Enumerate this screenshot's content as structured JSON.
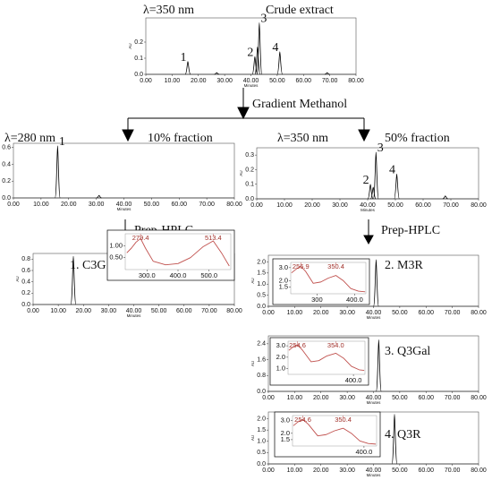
{
  "flow": {
    "gradient": "Gradient Methanol",
    "prep_left": "Prep-HPLC",
    "prep_right": "Prep-HPLC"
  },
  "panels": [
    {
      "title_left": "λ=350 nm",
      "title_right": "Crude extract",
      "x_label": "Minutes",
      "y_label": "AU",
      "xlim": [
        0,
        80
      ],
      "xticks": [
        {
          "value": 0,
          "label": "0.00"
        },
        {
          "value": 10,
          "label": "10.00"
        },
        {
          "value": 20,
          "label": "20.00"
        },
        {
          "value": 30,
          "label": "30.00"
        },
        {
          "value": 40,
          "label": "40.00"
        },
        {
          "value": 50,
          "label": "50.00"
        },
        {
          "value": 60,
          "label": "60.00"
        },
        {
          "value": 70,
          "label": "70.00"
        },
        {
          "value": 80,
          "label": "80.00"
        }
      ],
      "ylim": [
        0,
        0.35
      ],
      "yticks": [
        {
          "value": 0,
          "label": "0.0"
        },
        {
          "value": 0.1,
          "label": "0.1"
        },
        0.2
      ],
      "peaks": [
        {
          "time": 16,
          "height": 0.08,
          "label": "1"
        },
        {
          "time": 27,
          "height": 0.01
        },
        {
          "time": 41.5,
          "height": 0.11,
          "label": "2"
        },
        {
          "time": 42.5,
          "height": 0.17
        },
        {
          "time": 43.2,
          "height": 0.32,
          "label": "3"
        },
        {
          "time": 51,
          "height": 0.14,
          "label": "4"
        },
        {
          "time": 69,
          "height": 0.01
        }
      ]
    },
    {
      "title_left": "λ=280 nm",
      "title_right": "10% fraction",
      "x_label": "Minutes",
      "y_label": "AU",
      "xlim": [
        0,
        80
      ],
      "xticks": [
        {
          "value": 0,
          "label": "0.00"
        },
        {
          "value": 10,
          "label": "10.00"
        },
        {
          "value": 20,
          "label": "20.00"
        },
        {
          "value": 30,
          "label": "30.00"
        },
        {
          "value": 40,
          "label": "40.00"
        },
        {
          "value": 50,
          "label": "50.00"
        },
        {
          "value": 60,
          "label": "60.00"
        },
        {
          "value": 70,
          "label": "70.00"
        },
        {
          "value": 80,
          "label": "80.00"
        }
      ],
      "ylim": [
        0,
        0.65
      ],
      "yticks": [
        {
          "value": 0,
          "label": "0.0"
        },
        0.2,
        0.4,
        0.6
      ],
      "peaks": [
        {
          "time": 16,
          "height": 0.62,
          "label": "1"
        },
        {
          "time": 31,
          "height": 0.03
        }
      ]
    },
    {
      "title_left": "λ=350 nm",
      "title_right": "50% fraction",
      "x_label": "Minutes",
      "y_label": "AU",
      "xlim": [
        0,
        80
      ],
      "xticks": [
        {
          "value": 0,
          "label": "0.00"
        },
        {
          "value": 10,
          "label": "10.00"
        },
        {
          "value": 20,
          "label": "20.00"
        },
        {
          "value": 30,
          "label": "30.00"
        },
        {
          "value": 40,
          "label": "40.00"
        },
        {
          "value": 50,
          "label": "50.00"
        },
        {
          "value": 60,
          "label": "60.00"
        },
        {
          "value": 70,
          "label": "70.00"
        },
        {
          "value": 80,
          "label": "80.00"
        }
      ],
      "ylim": [
        0,
        0.35
      ],
      "yticks": [
        {
          "value": 0,
          "label": "0.0"
        },
        {
          "value": 0.1,
          "label": "0.1"
        },
        0.2,
        0.3
      ],
      "peaks": [
        {
          "time": 41,
          "height": 0.1,
          "label": "2"
        },
        {
          "time": 42,
          "height": 0.08
        },
        {
          "time": 43,
          "height": 0.32,
          "label": "3"
        },
        {
          "time": 50.5,
          "height": 0.17,
          "label": "4"
        },
        {
          "time": 68,
          "height": 0.02
        }
      ]
    },
    {
      "compound": "1. C3G",
      "x_label": "Minutes",
      "y_label": "AU",
      "xlim": [
        0,
        80
      ],
      "xticks": [
        {
          "value": 0,
          "label": "0.00"
        },
        {
          "value": 10,
          "label": "10.00"
        },
        {
          "value": 20,
          "label": "20.00"
        },
        {
          "value": 30,
          "label": "30.00"
        },
        {
          "value": 40,
          "label": "40.00"
        },
        {
          "value": 50,
          "label": "50.00"
        },
        {
          "value": 60,
          "label": "60.00"
        },
        {
          "value": 70,
          "label": "70.00"
        },
        {
          "value": 80,
          "label": "80.00"
        }
      ],
      "ylim": [
        0,
        0.9
      ],
      "yticks": [
        {
          "value": 0,
          "label": "0.0"
        },
        0.2,
        0.4,
        0.6,
        0.8
      ],
      "peaks": [
        {
          "time": 16,
          "height": 0.85
        }
      ],
      "inset": {
        "xlim": [
          230,
          570
        ],
        "xticks": [
          {
            "value": 300,
            "label": "300.0"
          },
          {
            "value": 400,
            "label": "400.0"
          },
          {
            "value": 500,
            "label": "500.0"
          }
        ],
        "ylim": [
          0,
          1.5
        ],
        "yticks": [
          {
            "value": 0.5,
            "label": "0.50"
          },
          {
            "value": 1,
            "label": "1.00"
          }
        ],
        "x": [
          235,
          250,
          265,
          279.4,
          295,
          320,
          360,
          400,
          440,
          480,
          513.4,
          540,
          565
        ],
        "values": [
          0.7,
          0.9,
          1.15,
          1.3,
          0.9,
          0.35,
          0.2,
          0.25,
          0.5,
          0.95,
          1.2,
          0.7,
          0.15
        ],
        "peak_labels": [
          {
            "x": 279.4,
            "label": "279.4"
          },
          {
            "x": 513.4,
            "label": "513.4"
          }
        ]
      }
    },
    {
      "compound": "2. M3R",
      "x_label": "Minutes",
      "y_label": "AU",
      "xlim": [
        0,
        80
      ],
      "xticks": [
        {
          "value": 0,
          "label": "0.00"
        },
        {
          "value": 10,
          "label": "10.00"
        },
        {
          "value": 20,
          "label": "20.00"
        },
        {
          "value": 30,
          "label": "30.00"
        },
        {
          "value": 40,
          "label": "40.00"
        },
        {
          "value": 50,
          "label": "50.00"
        },
        {
          "value": 60,
          "label": "60.00"
        },
        {
          "value": 70,
          "label": "70.00"
        },
        {
          "value": 80,
          "label": "80.00"
        }
      ],
      "ylim": [
        0,
        2.3
      ],
      "yticks": [
        {
          "value": 0,
          "label": "0.0"
        },
        {
          "value": 0.5,
          "label": "0.5"
        },
        {
          "value": 1,
          "label": "1.0"
        },
        1.5,
        {
          "value": 2,
          "label": "2.0"
        }
      ],
      "peaks": [
        {
          "time": 41,
          "height": 2.1
        }
      ],
      "inset": {
        "xlim": [
          230,
          430
        ],
        "xticks": [
          {
            "value": 300,
            "label": "300"
          },
          {
            "value": 400,
            "label": "400.0"
          }
        ],
        "ylim": [
          1,
          3.4
        ],
        "yticks": [
          1.5,
          {
            "value": 2,
            "label": "2.0"
          },
          {
            "value": 3,
            "label": "3.0"
          }
        ],
        "x": [
          232,
          245,
          256.9,
          270,
          290,
          310,
          330,
          350.4,
          370,
          390,
          410,
          428
        ],
        "values": [
          2.6,
          2.9,
          3.1,
          2.7,
          1.8,
          1.9,
          2.2,
          2.4,
          2.0,
          1.4,
          1.2,
          1.15
        ],
        "peak_labels": [
          {
            "x": 256.9,
            "label": "256.9"
          },
          {
            "x": 350.4,
            "label": "350.4"
          }
        ]
      }
    },
    {
      "compound": "3. Q3Gal",
      "x_label": "Minutes",
      "y_label": "AU",
      "xlim": [
        0,
        80
      ],
      "xticks": [
        {
          "value": 0,
          "label": "0.00"
        },
        {
          "value": 10,
          "label": "10.00"
        },
        {
          "value": 20,
          "label": "20.00"
        },
        {
          "value": 30,
          "label": "30.00"
        },
        {
          "value": 40,
          "label": "40.00"
        },
        {
          "value": 50,
          "label": "50.00"
        },
        {
          "value": 60,
          "label": "60.00"
        },
        {
          "value": 70,
          "label": "70.00"
        },
        {
          "value": 80,
          "label": "80.00"
        }
      ],
      "ylim": [
        0,
        2.8
      ],
      "yticks": [
        {
          "value": 0,
          "label": "0.0"
        },
        0.8,
        1.6,
        2.4
      ],
      "peaks": [
        {
          "time": 42,
          "height": 2.6
        }
      ],
      "inset": {
        "xlim": [
          230,
          430
        ],
        "xticks": [
          {
            "value": 400,
            "label": "400.0"
          }
        ],
        "ylim": [
          0.5,
          3.4
        ],
        "yticks": [
          {
            "value": 1,
            "label": "1.0"
          },
          {
            "value": 2,
            "label": "2.0"
          },
          {
            "value": 3,
            "label": "3.0"
          }
        ],
        "x": [
          232,
          243,
          254.6,
          268,
          290,
          310,
          330,
          354,
          375,
          395,
          415,
          428
        ],
        "values": [
          2.6,
          2.9,
          3.1,
          2.6,
          1.6,
          1.7,
          2.1,
          2.35,
          1.9,
          1.2,
          0.9,
          0.85
        ],
        "peak_labels": [
          {
            "x": 254.6,
            "label": "254.6"
          },
          {
            "x": 354,
            "label": "354.0"
          }
        ]
      }
    },
    {
      "compound": "4. Q3R",
      "x_label": "Minutes",
      "y_label": "AU",
      "xlim": [
        0,
        80
      ],
      "xticks": [
        {
          "value": 0,
          "label": "0.00"
        },
        {
          "value": 10,
          "label": "10.00"
        },
        {
          "value": 20,
          "label": "20.00"
        },
        {
          "value": 30,
          "label": "30.00"
        },
        {
          "value": 40,
          "label": "40.00"
        },
        {
          "value": 50,
          "label": "50.00"
        },
        {
          "value": 60,
          "label": "60.00"
        },
        {
          "value": 70,
          "label": "70.00"
        },
        {
          "value": 80,
          "label": "80.00"
        }
      ],
      "ylim": [
        0,
        2.3
      ],
      "yticks": [
        {
          "value": 0,
          "label": "0.0"
        },
        {
          "value": 0.5,
          "label": "0.5"
        },
        {
          "value": 1,
          "label": "1.0"
        },
        1.5,
        {
          "value": 2,
          "label": "2.0"
        }
      ],
      "peaks": [
        {
          "time": 48,
          "height": 2.2
        }
      ],
      "inset": {
        "xlim": [
          230,
          430
        ],
        "xticks": [
          {
            "value": 400,
            "label": "400.0"
          }
        ],
        "ylim": [
          1,
          3.4
        ],
        "yticks": [
          1.5,
          {
            "value": 2,
            "label": "2.0"
          },
          {
            "value": 3,
            "label": "3.0"
          }
        ],
        "x": [
          232,
          243,
          254.6,
          268,
          290,
          310,
          330,
          350.4,
          370,
          390,
          410,
          428
        ],
        "values": [
          2.6,
          2.9,
          3.1,
          2.7,
          1.8,
          1.9,
          2.2,
          2.4,
          2.0,
          1.4,
          1.2,
          1.15
        ],
        "peak_labels": [
          {
            "x": 254.6,
            "label": "254.6"
          },
          {
            "x": 350.4,
            "label": "350.4"
          }
        ]
      }
    }
  ]
}
